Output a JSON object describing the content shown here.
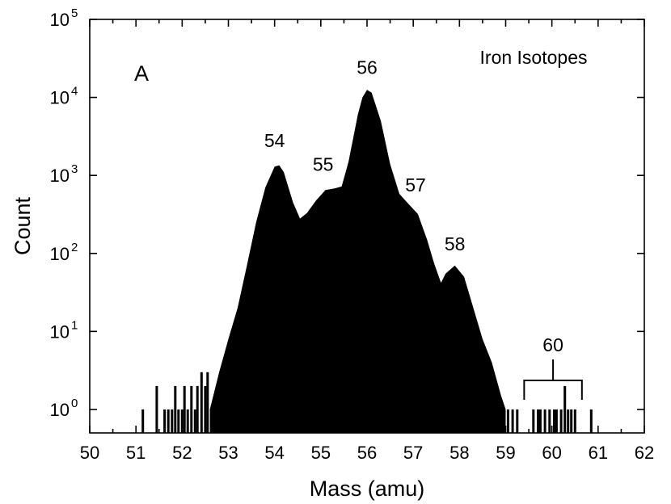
{
  "chart_data": {
    "type": "bar",
    "panel_label": "A",
    "annotation": "Iron Isotopes",
    "xlabel": "Mass (amu)",
    "ylabel": "Count",
    "xlim": [
      50,
      62
    ],
    "ylim": [
      0.5,
      100000
    ],
    "yscale": "log",
    "grid": false,
    "x_ticks": [
      "50",
      "51",
      "52",
      "53",
      "54",
      "55",
      "56",
      "57",
      "58",
      "59",
      "60",
      "61",
      "62"
    ],
    "y_ticks": [
      {
        "base": "10",
        "exp": "0"
      },
      {
        "base": "10",
        "exp": "1"
      },
      {
        "base": "10",
        "exp": "2"
      },
      {
        "base": "10",
        "exp": "3"
      },
      {
        "base": "10",
        "exp": "4"
      },
      {
        "base": "10",
        "exp": "5"
      }
    ],
    "peak_labels": [
      {
        "text": "54",
        "mass": 54.0,
        "count": 2300
      },
      {
        "text": "55",
        "mass": 55.05,
        "count": 1150
      },
      {
        "text": "56",
        "mass": 56.0,
        "count": 20000
      },
      {
        "text": "57",
        "mass": 57.05,
        "count": 620
      },
      {
        "text": "58",
        "mass": 57.9,
        "count": 110
      }
    ],
    "bracket": {
      "text": "60",
      "x_start": 59.4,
      "x_end": 60.65
    },
    "color": "#000000",
    "envelope": [
      [
        52.6,
        1
      ],
      [
        52.8,
        3
      ],
      [
        53.0,
        8
      ],
      [
        53.2,
        20
      ],
      [
        53.4,
        70
      ],
      [
        53.6,
        250
      ],
      [
        53.8,
        700
      ],
      [
        54.0,
        1300
      ],
      [
        54.1,
        1350
      ],
      [
        54.2,
        1100
      ],
      [
        54.4,
        450
      ],
      [
        54.55,
        280
      ],
      [
        54.7,
        330
      ],
      [
        54.9,
        480
      ],
      [
        55.1,
        650
      ],
      [
        55.3,
        680
      ],
      [
        55.45,
        720
      ],
      [
        55.6,
        1500
      ],
      [
        55.8,
        6000
      ],
      [
        55.9,
        10000
      ],
      [
        56.0,
        12500
      ],
      [
        56.1,
        11500
      ],
      [
        56.3,
        5000
      ],
      [
        56.5,
        1400
      ],
      [
        56.7,
        580
      ],
      [
        56.9,
        430
      ],
      [
        57.1,
        320
      ],
      [
        57.3,
        150
      ],
      [
        57.45,
        75
      ],
      [
        57.6,
        42
      ],
      [
        57.7,
        55
      ],
      [
        57.9,
        70
      ],
      [
        58.1,
        50
      ],
      [
        58.3,
        20
      ],
      [
        58.5,
        8
      ],
      [
        58.7,
        4
      ],
      [
        58.9,
        1.5
      ],
      [
        59.0,
        1
      ]
    ],
    "sparse_bars": [
      {
        "mass": 51.15,
        "count": 1
      },
      {
        "mass": 51.45,
        "count": 2
      },
      {
        "mass": 51.62,
        "count": 1
      },
      {
        "mass": 51.7,
        "count": 1
      },
      {
        "mass": 51.78,
        "count": 1
      },
      {
        "mass": 51.85,
        "count": 2
      },
      {
        "mass": 51.92,
        "count": 1
      },
      {
        "mass": 52.0,
        "count": 1
      },
      {
        "mass": 52.05,
        "count": 2
      },
      {
        "mass": 52.12,
        "count": 1
      },
      {
        "mass": 52.2,
        "count": 2
      },
      {
        "mass": 52.28,
        "count": 1
      },
      {
        "mass": 52.33,
        "count": 2
      },
      {
        "mass": 52.42,
        "count": 3
      },
      {
        "mass": 52.5,
        "count": 2
      },
      {
        "mass": 52.55,
        "count": 3
      },
      {
        "mass": 59.05,
        "count": 1
      },
      {
        "mass": 59.15,
        "count": 1
      },
      {
        "mass": 59.25,
        "count": 1
      },
      {
        "mass": 59.6,
        "count": 1
      },
      {
        "mass": 59.7,
        "count": 1
      },
      {
        "mass": 59.75,
        "count": 1
      },
      {
        "mass": 59.85,
        "count": 1
      },
      {
        "mass": 59.95,
        "count": 1
      },
      {
        "mass": 60.05,
        "count": 1
      },
      {
        "mass": 60.1,
        "count": 1
      },
      {
        "mass": 60.2,
        "count": 1
      },
      {
        "mass": 60.28,
        "count": 2
      },
      {
        "mass": 60.35,
        "count": 1
      },
      {
        "mass": 60.42,
        "count": 1
      },
      {
        "mass": 60.5,
        "count": 1
      },
      {
        "mass": 60.85,
        "count": 1
      }
    ]
  }
}
